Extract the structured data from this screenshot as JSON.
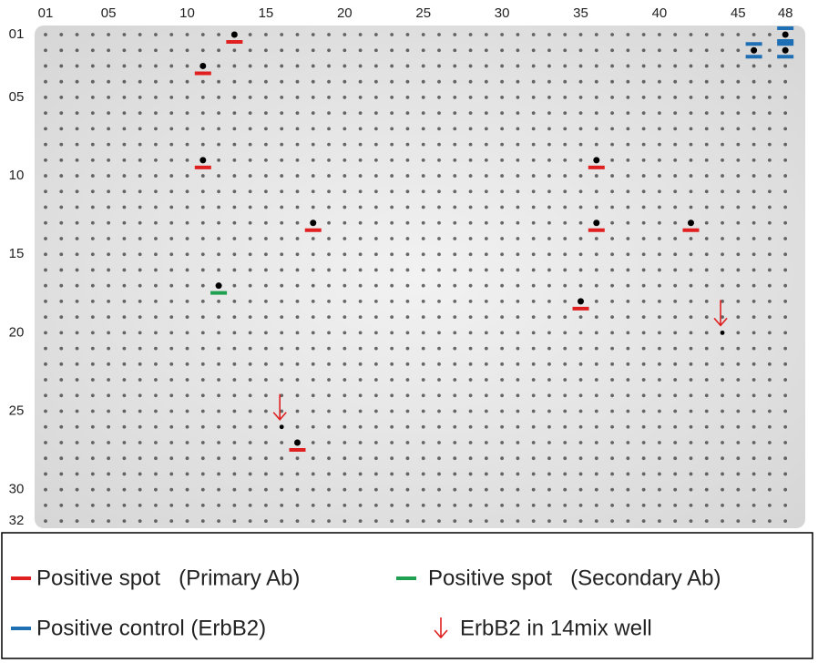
{
  "column_labels": [
    {
      "value": 1,
      "label": "01"
    },
    {
      "value": 5,
      "label": "05"
    },
    {
      "value": 10,
      "label": "10"
    },
    {
      "value": 15,
      "label": "15"
    },
    {
      "value": 20,
      "label": "20"
    },
    {
      "value": 25,
      "label": "25"
    },
    {
      "value": 30,
      "label": "30"
    },
    {
      "value": 35,
      "label": "35"
    },
    {
      "value": 40,
      "label": "40"
    },
    {
      "value": 45,
      "label": "45"
    },
    {
      "value": 48,
      "label": "48"
    }
  ],
  "row_labels": [
    {
      "value": 1,
      "label": "01"
    },
    {
      "value": 5,
      "label": "05"
    },
    {
      "value": 10,
      "label": "10"
    },
    {
      "value": 15,
      "label": "15"
    },
    {
      "value": 20,
      "label": "20"
    },
    {
      "value": 25,
      "label": "25"
    },
    {
      "value": 30,
      "label": "30"
    },
    {
      "value": 32,
      "label": "32"
    }
  ],
  "primary_spots": [
    [
      13,
      1
    ],
    [
      11,
      3
    ],
    [
      11,
      9
    ],
    [
      18,
      13
    ],
    [
      36,
      9
    ],
    [
      36,
      13
    ],
    [
      42,
      13
    ],
    [
      35,
      18
    ],
    [
      17,
      27
    ]
  ],
  "secondary_spots": [
    [
      12,
      17
    ]
  ],
  "positive_controls": [
    [
      46,
      2
    ],
    [
      48,
      1
    ],
    [
      48,
      2
    ]
  ],
  "erbb2_14mix": [
    [
      16,
      26
    ],
    [
      44,
      20
    ]
  ],
  "legend": {
    "primary": "Positive spot   (Primary Ab)",
    "secondary": "Positive spot   (Secondary Ab)",
    "control": "Positive control (ErbB2)",
    "mix": "ErbB2 in 14mix well"
  }
}
